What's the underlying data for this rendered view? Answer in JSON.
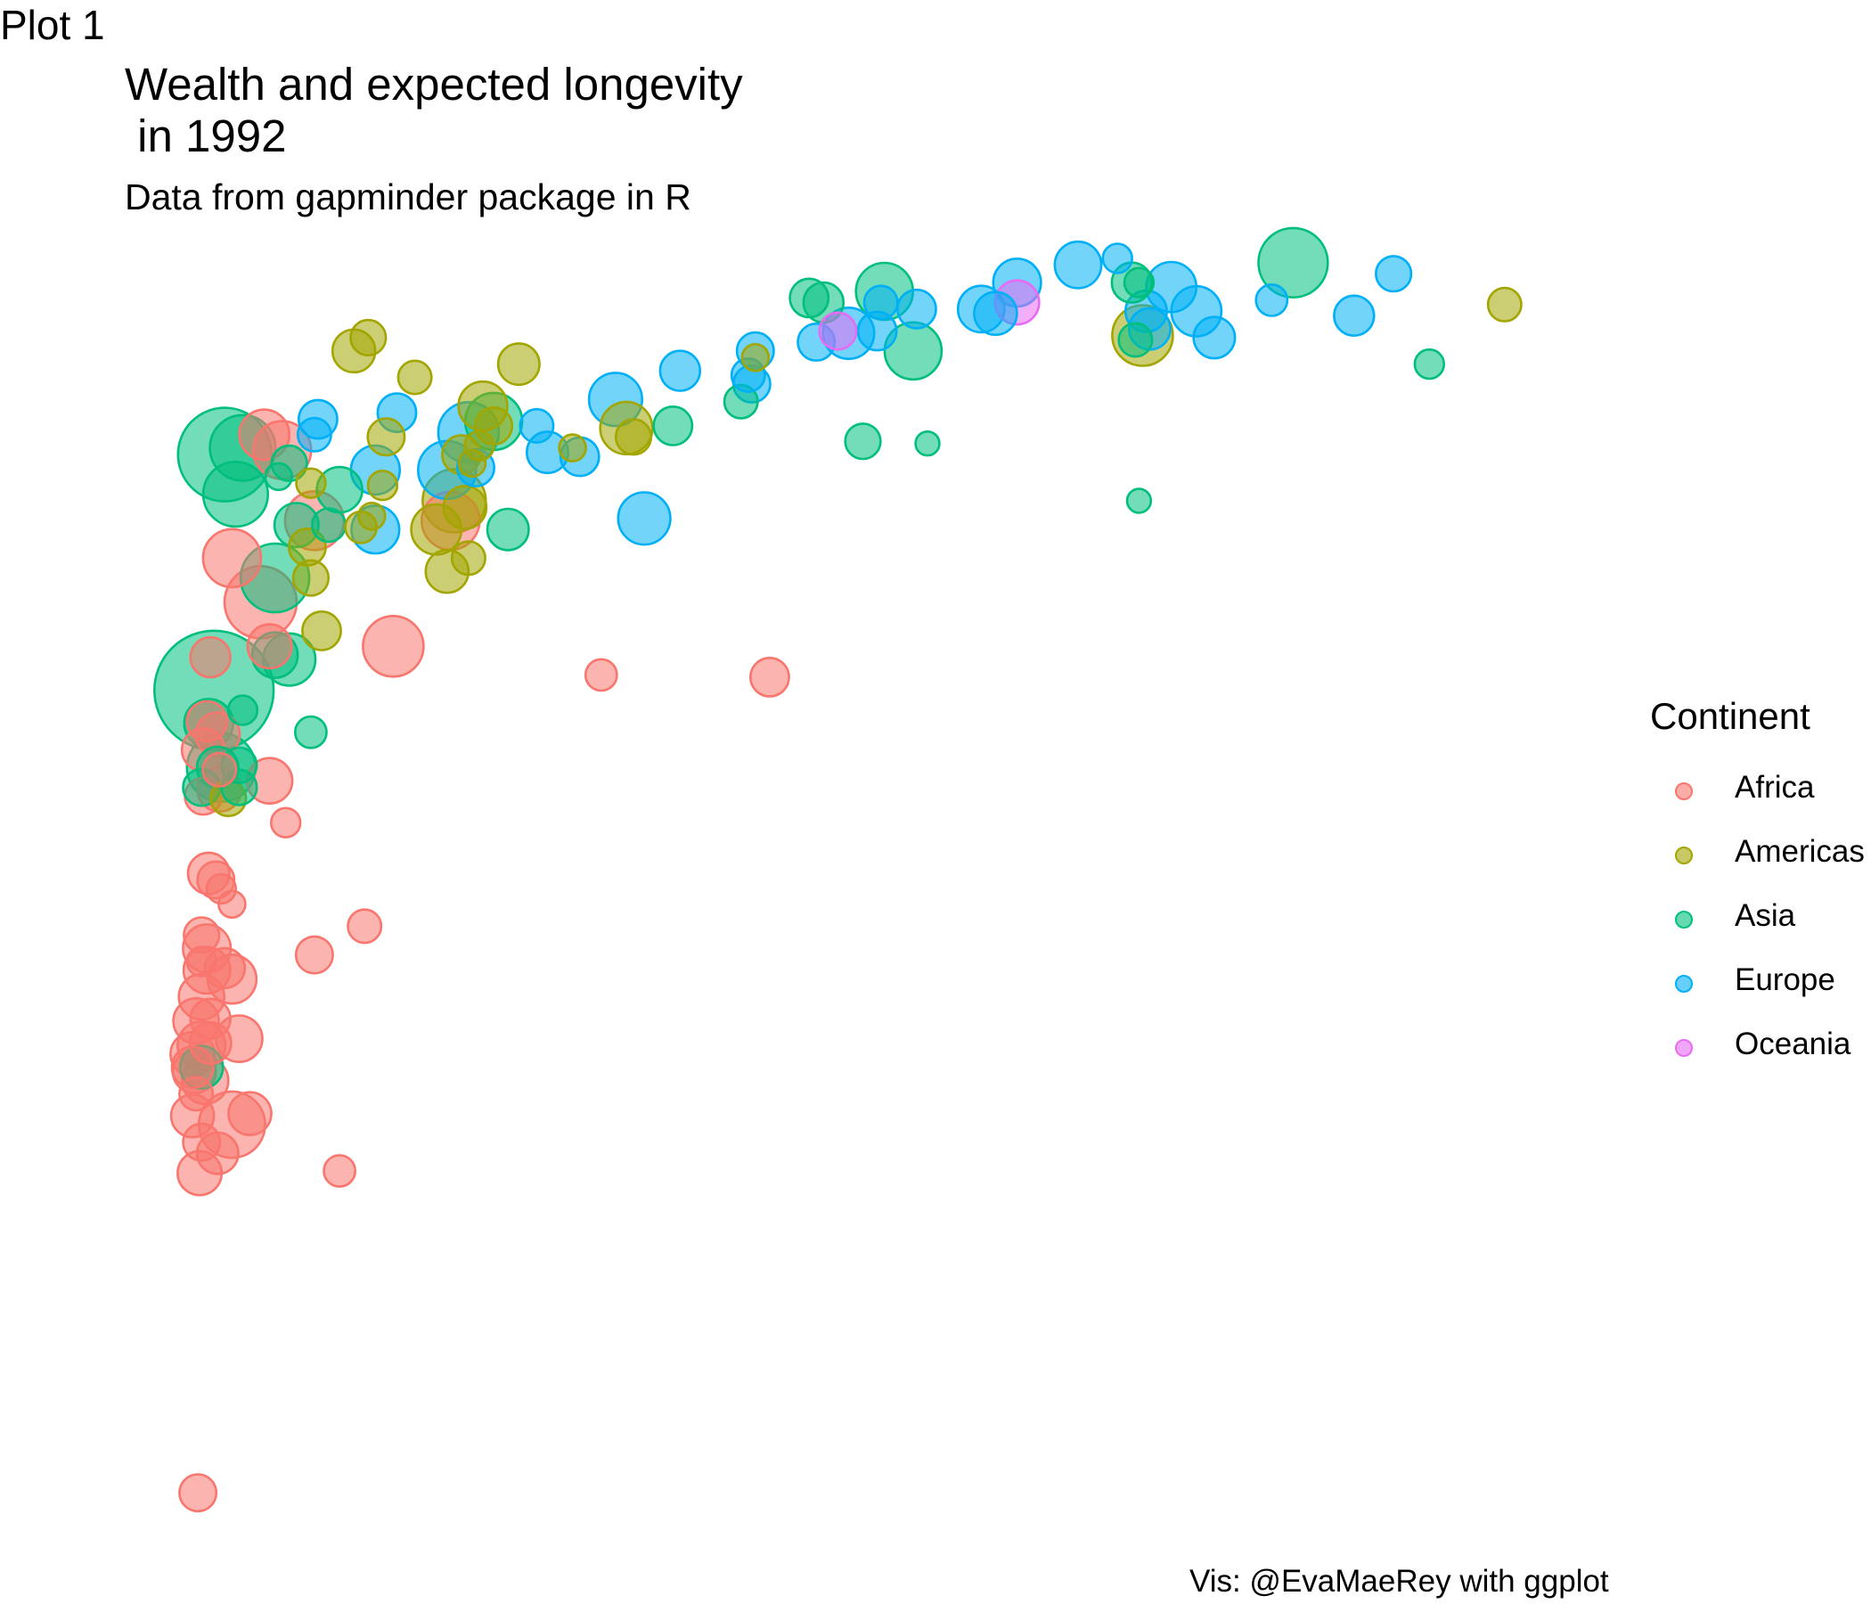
{
  "tag": "Plot 1",
  "title": "Wealth and expected longevity\n in 1992",
  "subtitle": "Data from gapminder package in R",
  "caption": "Vis: @EvaMaeRey with ggplot",
  "legend": {
    "title": "Continent",
    "items": [
      {
        "label": "Africa",
        "color": "#F8766D"
      },
      {
        "label": "Americas",
        "color": "#A3A500"
      },
      {
        "label": "Asia",
        "color": "#00BF7D"
      },
      {
        "label": "Europe",
        "color": "#00B0F6"
      },
      {
        "label": "Oceania",
        "color": "#E76BF3"
      }
    ]
  },
  "chart_data": {
    "type": "scatter",
    "title": "Wealth and expected longevity\n in 1992",
    "subtitle": "Data from gapminder package in R",
    "xlabel": "",
    "ylabel": "",
    "axes_visible": false,
    "grid": false,
    "legend_position": "right",
    "xlim": [
      0,
      42000
    ],
    "ylim": [
      23,
      80
    ],
    "size_variable": "population (millions)",
    "series": [
      {
        "name": "Africa",
        "color": "#F8766D",
        "points": [
          [
            550,
            23.6,
            8
          ],
          [
            7600,
            67.7,
            26
          ],
          [
            2400,
            71.6,
            18
          ],
          [
            3800,
            67.7,
            27
          ],
          [
            2900,
            70.9,
            26
          ],
          [
            1500,
            66.0,
            26
          ],
          [
            2300,
            64.0,
            44
          ],
          [
            6000,
            62.0,
            29
          ],
          [
            2550,
            62.0,
            13
          ],
          [
            11800,
            60.7,
            5
          ],
          [
            16500,
            60.6,
            9
          ],
          [
            900,
            61.5,
            10
          ],
          [
            800,
            58.6,
            10
          ],
          [
            1100,
            58.0,
            13
          ],
          [
            700,
            57.3,
            12
          ],
          [
            2550,
            55.9,
            14
          ],
          [
            1150,
            56.4,
            6
          ],
          [
            1150,
            55.5,
            13
          ],
          [
            700,
            55.2,
            8
          ],
          [
            3000,
            54.0,
            4
          ],
          [
            850,
            51.7,
            11
          ],
          [
            1200,
            51.0,
            4
          ],
          [
            1050,
            51.4,
            8
          ],
          [
            1500,
            50.3,
            3
          ],
          [
            650,
            48.9,
            7
          ],
          [
            800,
            48.3,
            16
          ],
          [
            1300,
            47.4,
            10
          ],
          [
            1500,
            46.9,
            17
          ],
          [
            3800,
            48.0,
            8
          ],
          [
            5200,
            49.3,
            6
          ],
          [
            650,
            47.7,
            4
          ],
          [
            800,
            47.3,
            15
          ],
          [
            650,
            46.1,
            14
          ],
          [
            900,
            45.1,
            10
          ],
          [
            500,
            45.0,
            14
          ],
          [
            650,
            43.9,
            16
          ],
          [
            400,
            43.5,
            13
          ],
          [
            450,
            42.7,
            12
          ],
          [
            750,
            42.3,
            15
          ],
          [
            900,
            44.0,
            11
          ],
          [
            1700,
            44.2,
            15
          ],
          [
            500,
            41.7,
            6
          ],
          [
            400,
            40.7,
            12
          ],
          [
            2000,
            40.8,
            12
          ],
          [
            1500,
            40.3,
            36
          ],
          [
            400,
            42.9,
            11
          ],
          [
            650,
            39.5,
            8
          ],
          [
            1100,
            39.0,
            11
          ],
          [
            600,
            38.1,
            13
          ],
          [
            4500,
            38.2,
            5
          ]
        ]
      },
      {
        "name": "Americas",
        "color": "#A3A500",
        "points": [
          [
            4900,
            75.4,
            12
          ],
          [
            5300,
            76.0,
            7
          ],
          [
            6600,
            74.2,
            6
          ],
          [
            8500,
            72.9,
            17
          ],
          [
            8800,
            72.0,
            8
          ],
          [
            5800,
            71.5,
            8
          ],
          [
            8400,
            71.1,
            4
          ],
          [
            9500,
            74.8,
            11
          ],
          [
            8200,
            70.3,
            3
          ],
          [
            7900,
            70.7,
            9
          ],
          [
            7700,
            68.6,
            32
          ],
          [
            12500,
            71.9,
            20
          ],
          [
            12700,
            71.5,
            7
          ],
          [
            11000,
            71.0,
            3
          ],
          [
            5700,
            69.3,
            4
          ],
          [
            7200,
            67.3,
            18
          ],
          [
            8000,
            68.3,
            12
          ],
          [
            8100,
            66.0,
            6
          ],
          [
            3700,
            69.4,
            4
          ],
          [
            5400,
            67.9,
            3
          ],
          [
            3600,
            66.5,
            8
          ],
          [
            3700,
            65.1,
            7
          ],
          [
            7500,
            65.4,
            12
          ],
          [
            5100,
            67.4,
            5
          ],
          [
            1400,
            55.1,
            7
          ],
          [
            4000,
            62.7,
            9
          ],
          [
            16100,
            75.1,
            3
          ],
          [
            26900,
            76.1,
            29
          ],
          [
            37000,
            77.5,
            6
          ]
        ]
      },
      {
        "name": "Asia",
        "color": "#00BF7D",
        "points": [
          [
            31100,
            79.4,
            40
          ],
          [
            26800,
            78.5,
            4
          ],
          [
            26600,
            78.5,
            10
          ],
          [
            19700,
            78.1,
            25
          ],
          [
            18000,
            77.6,
            10
          ],
          [
            17600,
            77.8,
            9
          ],
          [
            26700,
            75.9,
            6
          ],
          [
            34900,
            74.8,
            4
          ],
          [
            20500,
            75.4,
            25
          ],
          [
            15700,
            73.1,
            6
          ],
          [
            20900,
            71.2,
            2
          ],
          [
            19100,
            71.3,
            7
          ],
          [
            13800,
            72.0,
            9
          ],
          [
            26800,
            68.6,
            2
          ],
          [
            8800,
            72.2,
            25
          ],
          [
            1800,
            71.0,
            35
          ],
          [
            3100,
            70.3,
            7
          ],
          [
            2800,
            69.7,
            3
          ],
          [
            1600,
            68.9,
            34
          ],
          [
            1300,
            70.7,
            80
          ],
          [
            4200,
            67.5,
            6
          ],
          [
            3300,
            67.5,
            13
          ],
          [
            4500,
            69.1,
            14
          ],
          [
            9200,
            67.3,
            11
          ],
          [
            2700,
            65.1,
            39
          ],
          [
            2700,
            61.6,
            14
          ],
          [
            1000,
            60.0,
            137
          ],
          [
            1800,
            59.1,
            4
          ],
          [
            1100,
            56.5,
            11
          ],
          [
            1200,
            56.5,
            39
          ],
          [
            1700,
            56.6,
            7
          ],
          [
            3100,
            61.4,
            20
          ],
          [
            3700,
            58.1,
            5
          ],
          [
            1700,
            55.6,
            7
          ],
          [
            850,
            58.5,
            17
          ],
          [
            650,
            42.9,
            12
          ],
          [
            650,
            55.6,
            8
          ]
        ]
      },
      {
        "name": "Europe",
        "color": "#00B0F6",
        "points": [
          [
            32800,
            77.0,
            10
          ],
          [
            30500,
            77.7,
            5
          ],
          [
            27700,
            78.3,
            18
          ],
          [
            25100,
            79.3,
            15
          ],
          [
            26200,
            79.6,
            4
          ],
          [
            33900,
            78.9,
            7
          ],
          [
            19600,
            77.6,
            6
          ],
          [
            22400,
            77.3,
            15
          ],
          [
            23400,
            78.5,
            16
          ],
          [
            27000,
            77.2,
            11
          ],
          [
            28400,
            77.2,
            18
          ],
          [
            28900,
            76.0,
            11
          ],
          [
            18700,
            76.2,
            19
          ],
          [
            27100,
            76.4,
            11
          ],
          [
            19500,
            76.3,
            9
          ],
          [
            22800,
            77.1,
            12
          ],
          [
            20600,
            77.3,
            9
          ],
          [
            17800,
            75.8,
            8
          ],
          [
            16100,
            75.4,
            8
          ],
          [
            15900,
            74.3,
            6
          ],
          [
            14000,
            74.5,
            10
          ],
          [
            16000,
            73.9,
            8
          ],
          [
            12200,
            73.2,
            21
          ],
          [
            10000,
            72.0,
            6
          ],
          [
            3900,
            72.3,
            9
          ],
          [
            3800,
            71.6,
            6
          ],
          [
            6100,
            72.6,
            9
          ],
          [
            8100,
            71.7,
            29
          ],
          [
            11200,
            70.6,
            9
          ],
          [
            10300,
            70.8,
            11
          ],
          [
            5500,
            70.0,
            17
          ],
          [
            7500,
            70.0,
            26
          ],
          [
            13000,
            67.8,
            20
          ],
          [
            8300,
            70.1,
            8
          ],
          [
            5500,
            67.3,
            16
          ]
        ]
      },
      {
        "name": "Oceania",
        "color": "#E76BF3",
        "points": [
          [
            23400,
            77.6,
            13
          ],
          [
            18400,
            76.3,
            8
          ]
        ]
      }
    ]
  }
}
